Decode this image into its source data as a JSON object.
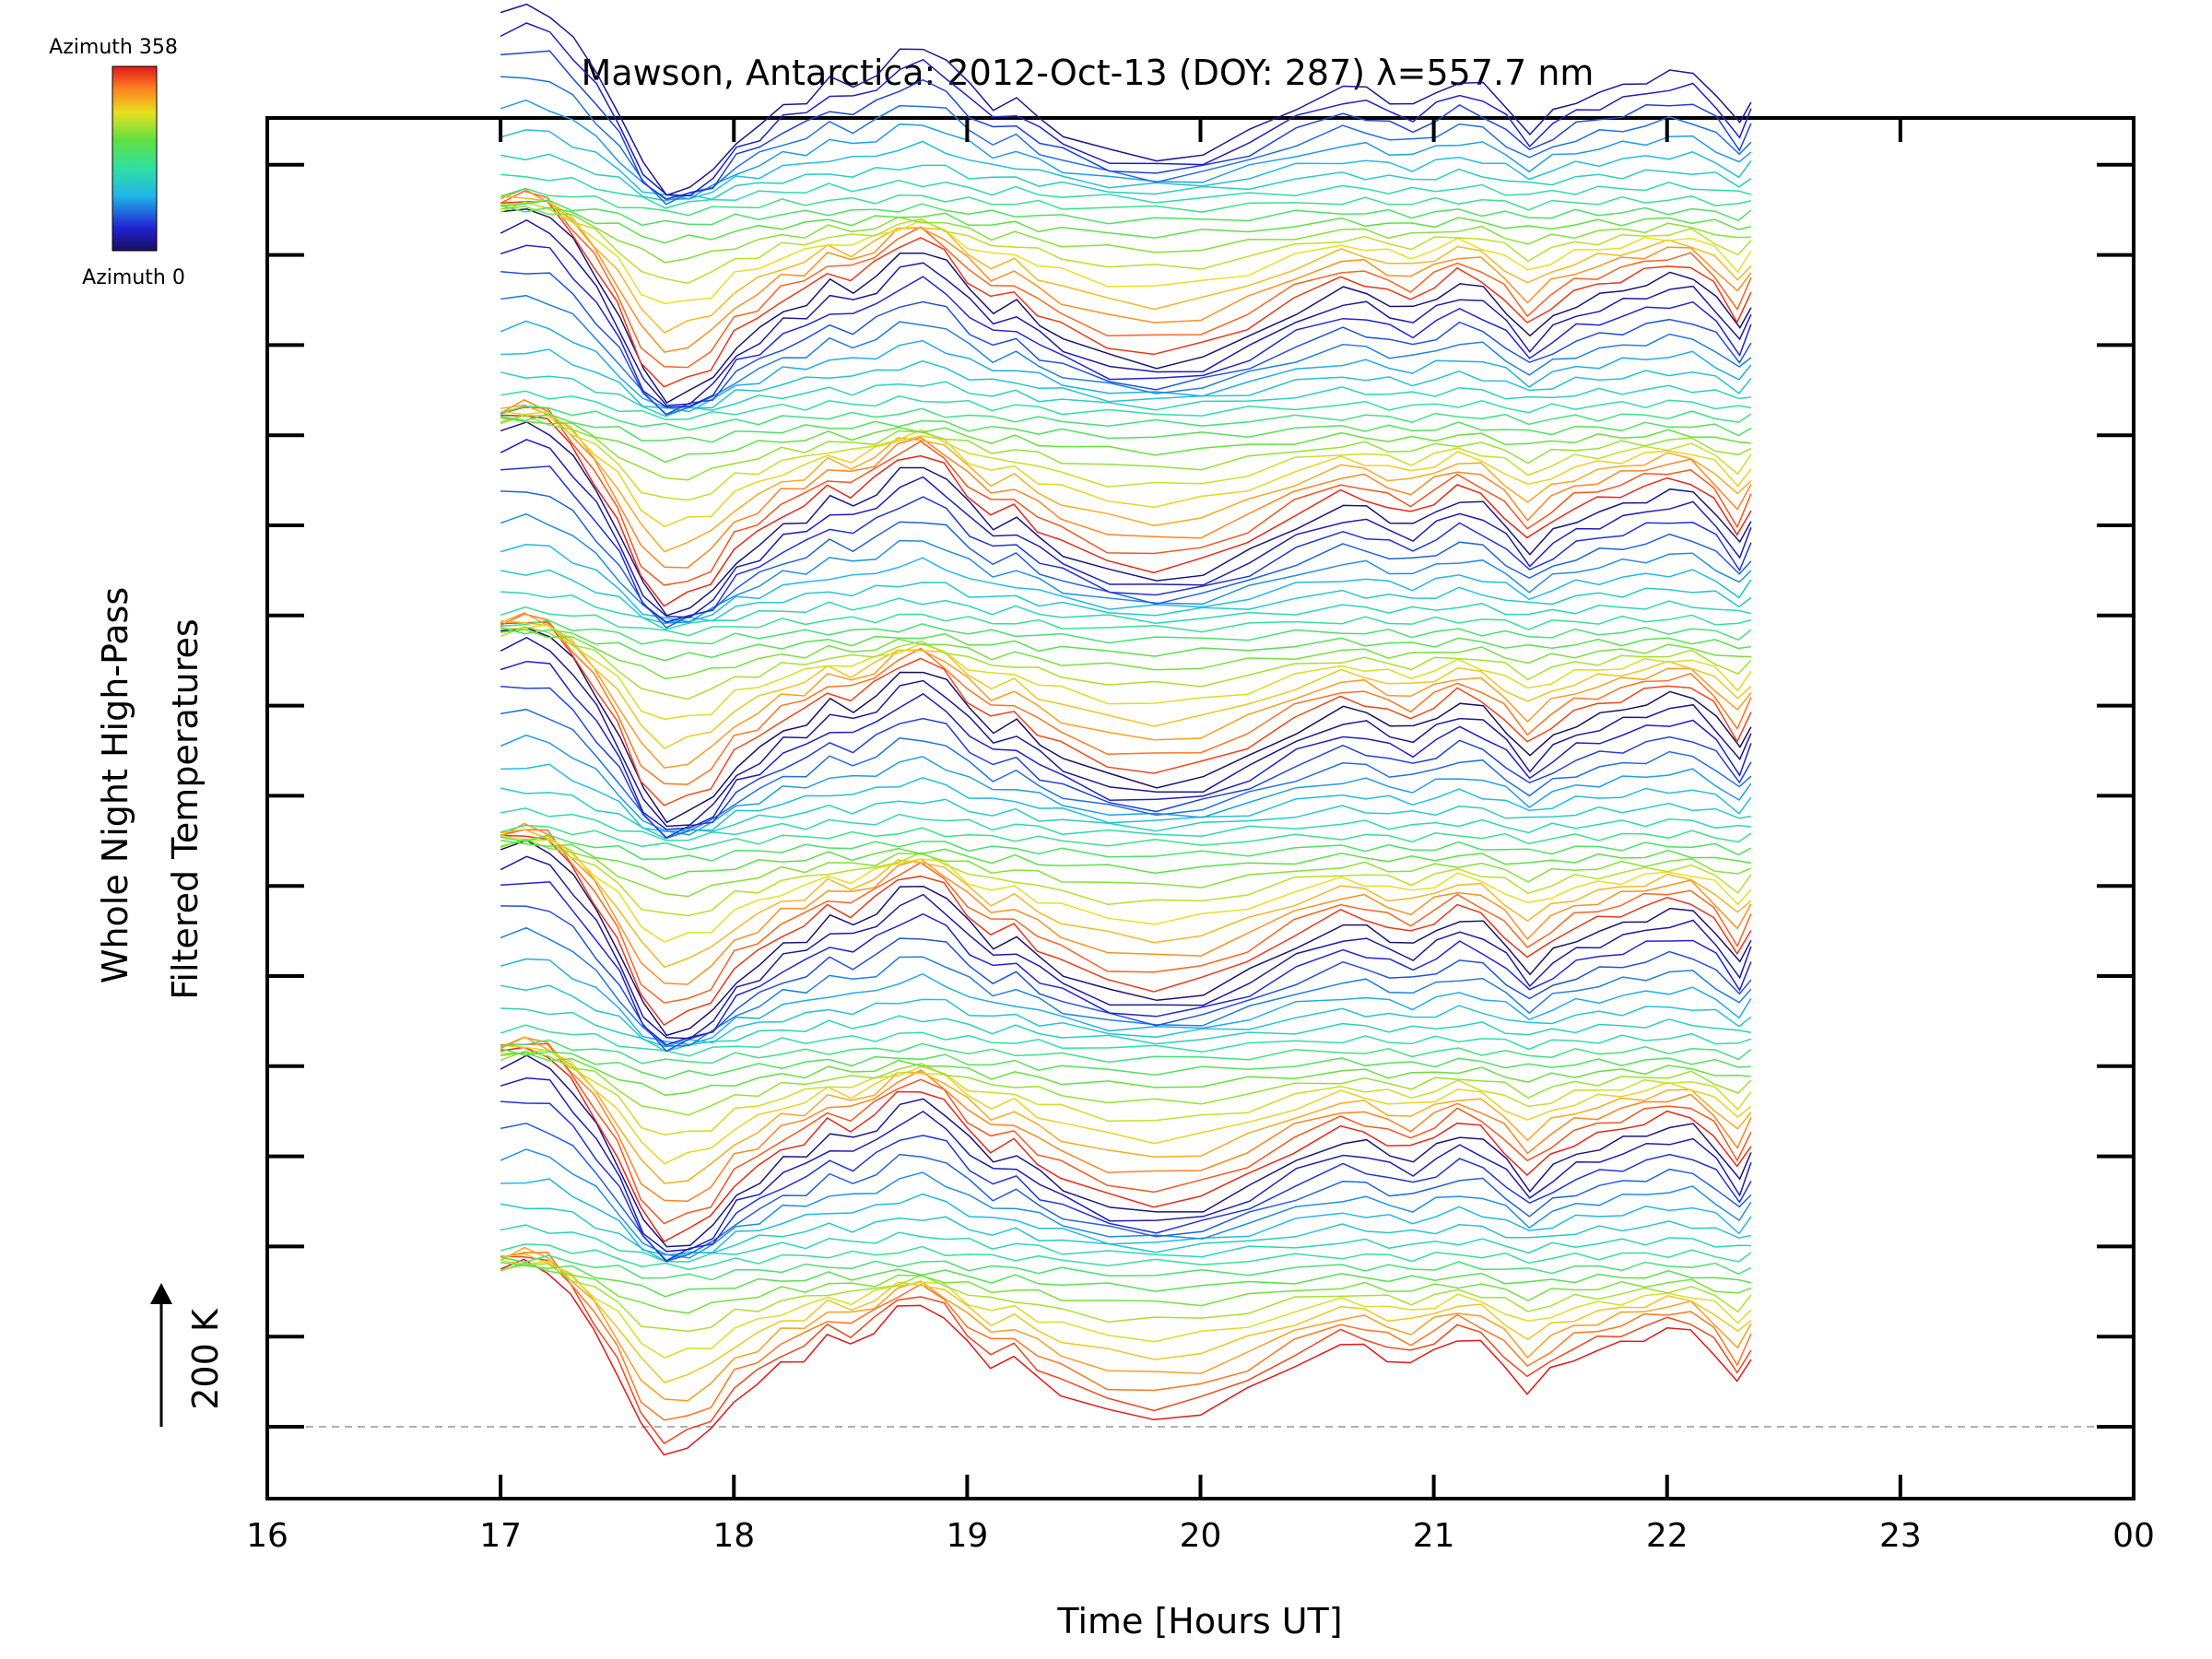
{
  "chart_data": {
    "type": "line",
    "title": "Mawson, Antarctica: 2012-Oct-13 (DOY: 287) λ=557.7 nm",
    "xlabel": "Time [Hours UT]",
    "ylabel": [
      "Whole Night High-Pass",
      "Filtered Temperatures"
    ],
    "xlim": [
      16,
      24
    ],
    "x_tick_labels": [
      "16",
      "17",
      "18",
      "19",
      "20",
      "21",
      "22",
      "23",
      "00"
    ],
    "scale_bar": {
      "label": "200 K",
      "value": 200,
      "unit": "K"
    },
    "colorbar": {
      "top_label": "Azimuth 358",
      "bottom_label": "Azimuth 0",
      "colormap": "rainbow",
      "range": [
        0,
        358
      ]
    },
    "series_layout": {
      "count": 112,
      "azimuth_cycles": 6,
      "stacked": true,
      "offset_note": "each trace vertically offset; baseline dashed"
    },
    "base_profile": {
      "x": [
        17.0,
        17.1,
        17.2,
        17.3,
        17.4,
        17.5,
        17.6,
        17.7,
        17.8,
        17.9,
        18.0,
        18.1,
        18.2,
        18.3,
        18.4,
        18.5,
        18.6,
        18.7,
        18.8,
        18.9,
        19.0,
        19.1,
        19.2,
        19.3,
        19.4,
        19.6,
        19.8,
        20.0,
        20.2,
        20.4,
        20.6,
        20.7,
        20.8,
        20.9,
        21.0,
        21.1,
        21.2,
        21.3,
        21.4,
        21.5,
        21.6,
        21.7,
        21.8,
        21.9,
        22.0,
        22.1,
        22.2,
        22.3,
        22.36
      ],
      "y": [
        150,
        160,
        150,
        110,
        60,
        0,
        -80,
        -120,
        -110,
        -90,
        -40,
        -20,
        10,
        20,
        50,
        40,
        60,
        90,
        100,
        80,
        40,
        10,
        20,
        -10,
        -30,
        -60,
        -70,
        -60,
        -30,
        10,
        40,
        35,
        20,
        10,
        30,
        50,
        40,
        10,
        -30,
        0,
        20,
        30,
        40,
        50,
        60,
        60,
        30,
        -20,
        20
      ]
    },
    "colors": {
      "dark_blue": "#1a1a5e",
      "blue": "#2a2acc",
      "cyan": "#20c8e0",
      "green": "#40d040",
      "yellow": "#e0e020",
      "orange": "#ff8020",
      "red": "#e02020"
    }
  }
}
